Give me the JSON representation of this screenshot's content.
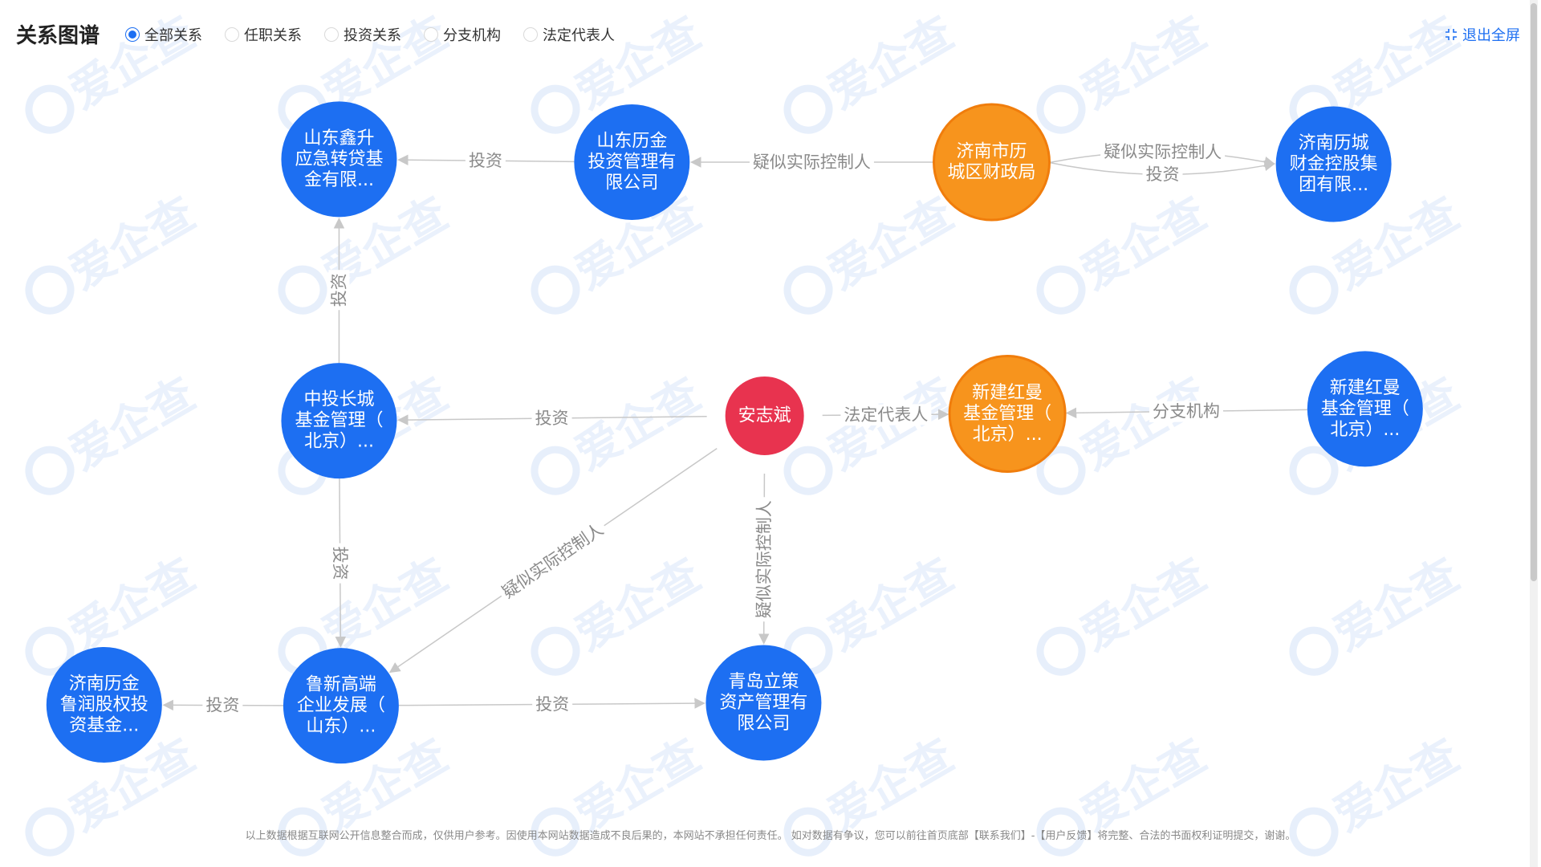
{
  "header": {
    "title": "关系图谱",
    "filters": [
      {
        "label": "全部关系",
        "checked": true
      },
      {
        "label": "任职关系",
        "checked": false
      },
      {
        "label": "投资关系",
        "checked": false
      },
      {
        "label": "分支机构",
        "checked": false
      },
      {
        "label": "法定代表人",
        "checked": false
      }
    ],
    "exit_label": "退出全屏",
    "exit_icon": "fullscreen-exit-icon"
  },
  "colors": {
    "company": "#1d6ff2",
    "government": "#f7941d",
    "person": "#e8334f",
    "edge": "#c8c8c8",
    "accent": "#1d6ff2"
  },
  "watermark": {
    "text": "爱企查"
  },
  "graph": {
    "nodes": [
      {
        "id": "n1",
        "type": "company",
        "lines": [
          "山东鑫升",
          "应急转贷基",
          "金有限..."
        ]
      },
      {
        "id": "n2",
        "type": "company",
        "lines": [
          "山东历金",
          "投资管理有",
          "限公司"
        ]
      },
      {
        "id": "n3",
        "type": "government",
        "lines": [
          "济南市历",
          "城区财政局"
        ]
      },
      {
        "id": "n4",
        "type": "company",
        "lines": [
          "济南历城",
          "财金控股集",
          "团有限..."
        ]
      },
      {
        "id": "n5",
        "type": "company",
        "lines": [
          "中投长城",
          "基金管理（",
          "北京）..."
        ]
      },
      {
        "id": "n6",
        "type": "person",
        "lines": [
          "安志斌"
        ]
      },
      {
        "id": "n7",
        "type": "government",
        "lines": [
          "新建红曼",
          "基金管理（",
          "北京）..."
        ]
      },
      {
        "id": "n8",
        "type": "company",
        "lines": [
          "新建红曼",
          "基金管理（",
          "北京）..."
        ]
      },
      {
        "id": "n9",
        "type": "company",
        "lines": [
          "济南历金",
          "鲁润股权投",
          "资基金..."
        ]
      },
      {
        "id": "n10",
        "type": "company",
        "lines": [
          "鲁新高端",
          "企业发展（",
          "山东）..."
        ]
      },
      {
        "id": "n11",
        "type": "company",
        "lines": [
          "青岛立策",
          "资产管理有",
          "限公司"
        ]
      }
    ],
    "edges": [
      {
        "from": "n2",
        "to": "n1",
        "label": "投资"
      },
      {
        "from": "n3",
        "to": "n2",
        "label": "疑似实际控制人"
      },
      {
        "from": "n3",
        "to": "n4",
        "label": "疑似实际控制人"
      },
      {
        "from": "n3",
        "to": "n4",
        "label": "投资"
      },
      {
        "from": "n5",
        "to": "n1",
        "label": "投资"
      },
      {
        "from": "n6",
        "to": "n5",
        "label": "投资"
      },
      {
        "from": "n6",
        "to": "n7",
        "label": "法定代表人"
      },
      {
        "from": "n8",
        "to": "n7",
        "label": "分支机构"
      },
      {
        "from": "n5",
        "to": "n10",
        "label": "投资"
      },
      {
        "from": "n6",
        "to": "n10",
        "label": "疑似实际控制人"
      },
      {
        "from": "n6",
        "to": "n11",
        "label": "疑似实际控制人"
      },
      {
        "from": "n10",
        "to": "n9",
        "label": "投资"
      },
      {
        "from": "n10",
        "to": "n11",
        "label": "投资"
      }
    ]
  },
  "footer": {
    "disclaimer": "以上数据根据互联网公开信息整合而成，仅供用户参考。因使用本网站数据造成不良后果的，本网站不承担任何责任。 如对数据有争议，您可以前往首页底部【联系我们】-【用户反馈】将完整、合法的书面权利证明提交，谢谢。"
  }
}
